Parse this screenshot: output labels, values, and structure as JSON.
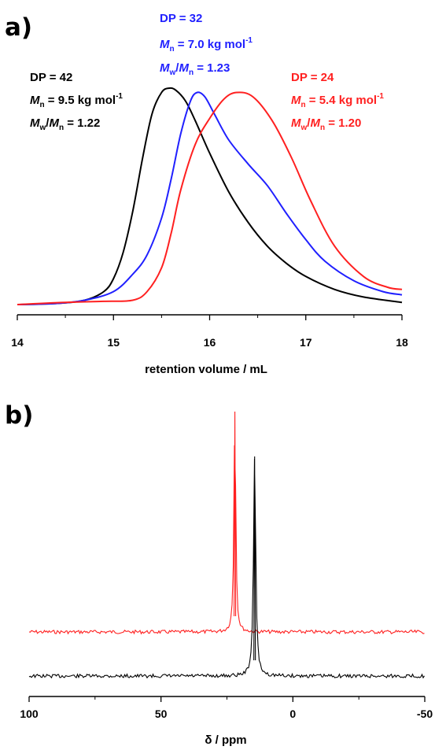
{
  "chart_data": [
    {
      "type": "line",
      "panel_label": "a)",
      "xlabel": "retention volume / mL",
      "ylabel": "",
      "xlim": [
        14,
        18
      ],
      "xticks": [
        "14",
        "15",
        "16",
        "17",
        "18"
      ],
      "grid": false,
      "series": [
        {
          "color": "#000000",
          "x": [
            14.0,
            14.4,
            14.7,
            14.9,
            15.0,
            15.1,
            15.2,
            15.3,
            15.4,
            15.5,
            15.58,
            15.65,
            15.75,
            15.85,
            16.0,
            16.2,
            16.4,
            16.6,
            16.8,
            17.0,
            17.3,
            17.6,
            18.0
          ],
          "y": [
            0.0,
            0.005,
            0.02,
            0.06,
            0.12,
            0.24,
            0.43,
            0.67,
            0.88,
            0.98,
            1.0,
            0.99,
            0.94,
            0.85,
            0.7,
            0.52,
            0.38,
            0.27,
            0.19,
            0.13,
            0.07,
            0.035,
            0.01
          ]
        },
        {
          "color": "#2020ff",
          "x": [
            14.0,
            14.4,
            14.7,
            15.0,
            15.2,
            15.35,
            15.5,
            15.6,
            15.7,
            15.8,
            15.87,
            15.95,
            16.05,
            16.2,
            16.4,
            16.6,
            16.8,
            17.0,
            17.2,
            17.5,
            17.8,
            18.0
          ],
          "y": [
            0.0,
            0.005,
            0.02,
            0.06,
            0.14,
            0.23,
            0.4,
            0.58,
            0.79,
            0.94,
            0.98,
            0.96,
            0.88,
            0.76,
            0.65,
            0.55,
            0.42,
            0.3,
            0.2,
            0.11,
            0.06,
            0.045
          ]
        },
        {
          "color": "#ff2020",
          "x": [
            14.0,
            14.5,
            14.9,
            15.2,
            15.35,
            15.5,
            15.6,
            15.7,
            15.85,
            16.0,
            16.15,
            16.28,
            16.45,
            16.65,
            16.85,
            17.05,
            17.3,
            17.6,
            17.85,
            18.0
          ],
          "y": [
            0.0,
            0.01,
            0.015,
            0.02,
            0.06,
            0.17,
            0.33,
            0.53,
            0.74,
            0.86,
            0.95,
            0.98,
            0.96,
            0.85,
            0.68,
            0.48,
            0.27,
            0.13,
            0.08,
            0.07
          ]
        }
      ],
      "annotations": [
        {
          "color": "#000000",
          "lines": [
            "DP = 42",
            "9.5 kg mol",
            "1.22"
          ]
        },
        {
          "color": "#2020ff",
          "lines": [
            "DP = 32",
            "7.0 kg mol",
            "1.23"
          ]
        },
        {
          "color": "#ff2020",
          "lines": [
            "DP = 24",
            "5.4 kg mol",
            "1.20"
          ]
        }
      ],
      "annotation_symbols": {
        "mn": "M",
        "mn_sub": "n",
        "mw": "M",
        "mw_sub": "w",
        "slash": "/",
        "eq": " = ",
        "sup": "-1"
      }
    },
    {
      "type": "line",
      "panel_label": "b)",
      "xlabel": "δ / ppm",
      "ylabel": "",
      "xlim": [
        100,
        -50
      ],
      "xticks": [
        "100",
        "50",
        "0",
        "-50"
      ],
      "grid": false,
      "series": [
        {
          "color": "#ff2020",
          "peak_ppm": 22,
          "peak_height": 1.0
        },
        {
          "color": "#000000",
          "peak_ppm": 14.5,
          "peak_height": 1.0
        }
      ]
    }
  ]
}
